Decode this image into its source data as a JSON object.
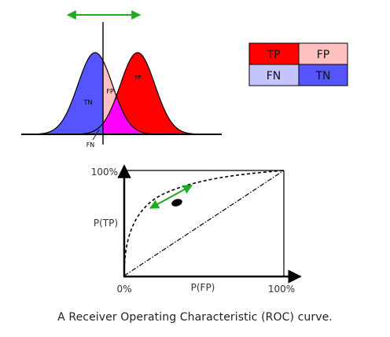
{
  "colors": {
    "tp": "#ff0000",
    "fp": "#ffc0c0",
    "fn": "#c4c4ff",
    "tn": "#5555ff",
    "overlap": "#ff00ff",
    "arrow": "#22aa22",
    "ink": "#000000"
  },
  "distribution": {
    "label_tn": "TN",
    "label_fp": "FP",
    "label_tp": "TP",
    "label_fn": "FN"
  },
  "legend": {
    "tp": "TP",
    "fp": "FP",
    "fn": "FN",
    "tn": "TN"
  },
  "roc": {
    "y_max_label": "100%",
    "y_axis_label": "P(TP)",
    "x_min_label": "0%",
    "x_axis_label": "P(FP)",
    "x_max_label": "100%"
  },
  "caption": "A Receiver Operating Characteristic (ROC) curve."
}
